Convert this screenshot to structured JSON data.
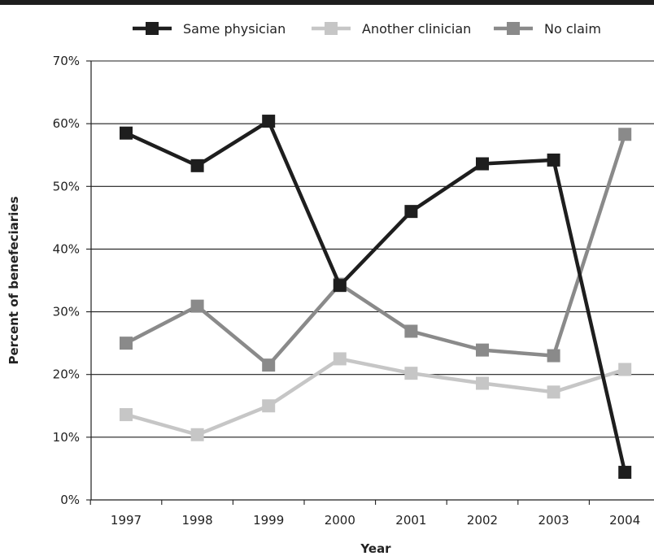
{
  "chart_data": {
    "type": "line",
    "xlabel": "Year",
    "ylabel": "Percent of benefeciaries",
    "categories": [
      "1997",
      "1998",
      "1999",
      "2000",
      "2001",
      "2002",
      "2003",
      "2004"
    ],
    "ylim": [
      0,
      70
    ],
    "yticks": [
      0,
      10,
      20,
      30,
      40,
      50,
      60,
      70
    ],
    "ytick_labels": [
      "0%",
      "10%",
      "20%",
      "30%",
      "40%",
      "50%",
      "60%",
      "70%"
    ],
    "grid": true,
    "legend_position": "top",
    "series": [
      {
        "name": "Same physician",
        "color": "#1e1e1e",
        "values": [
          58.5,
          53.3,
          60.4,
          34.2,
          46.0,
          53.6,
          54.2,
          4.4
        ]
      },
      {
        "name": "Another clinician",
        "color": "#c6c6c6",
        "values": [
          13.6,
          10.4,
          15.0,
          22.5,
          20.2,
          18.6,
          17.2,
          20.8
        ]
      },
      {
        "name": "No claim",
        "color": "#8a8a8a",
        "values": [
          25.0,
          30.9,
          21.5,
          34.4,
          26.9,
          23.9,
          23.0,
          58.3
        ]
      }
    ]
  }
}
